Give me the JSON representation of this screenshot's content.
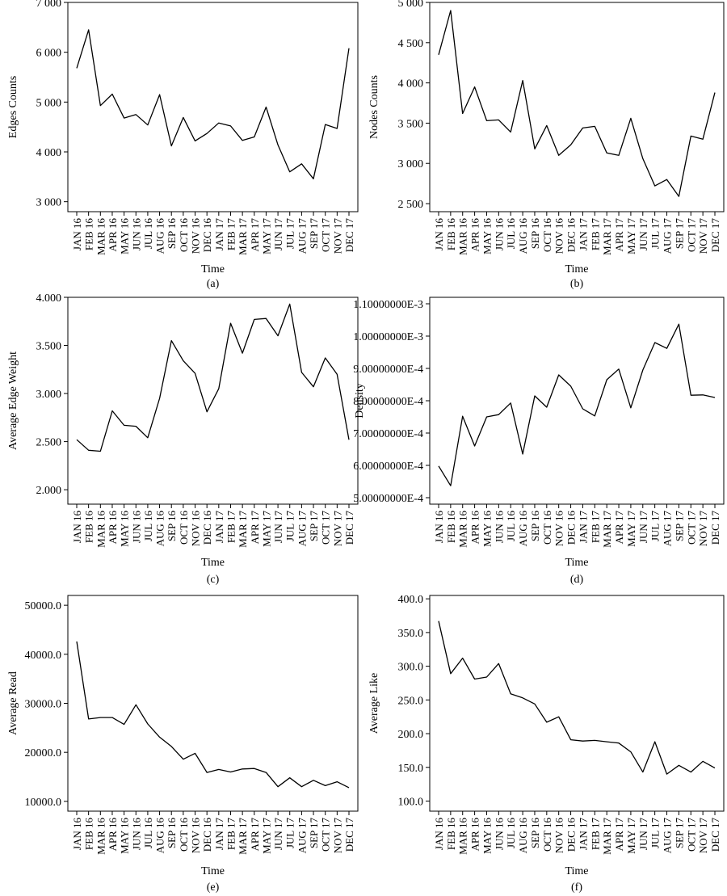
{
  "chart_data": [
    {
      "type": "line",
      "caption": "(a)",
      "xlabel": "Time",
      "ylabel": "Edges Counts",
      "categories": [
        "JAN 16",
        "FEB 16",
        "MAR 16",
        "APR 16",
        "MAY 16",
        "JUN 16",
        "JUL 16",
        "AUG 16",
        "SEP 16",
        "OCT 16",
        "NOV 16",
        "DEC 16",
        "JAN 17",
        "FEB 17",
        "MAR 17",
        "APR 17",
        "MAY 17",
        "JUN 17",
        "JUL 17",
        "AUG 17",
        "SEP 17",
        "OCT 17",
        "NOV 17",
        "DEC 17"
      ],
      "values": [
        5680,
        6450,
        4930,
        5160,
        4680,
        4750,
        4540,
        5150,
        4120,
        4690,
        4220,
        4370,
        4580,
        4520,
        4230,
        4300,
        4900,
        4140,
        3600,
        3760,
        3460,
        4550,
        4470,
        6080
      ],
      "ylim": [
        2800,
        7000
      ],
      "yticks": [
        3000,
        4000,
        5000,
        6000,
        7000
      ],
      "ytick_labels": [
        "3 000",
        "4 000",
        "5 000",
        "6 000",
        "7 000"
      ]
    },
    {
      "type": "line",
      "caption": "(b)",
      "xlabel": "Time",
      "ylabel": "Nodes Counts",
      "categories": [
        "JAN 16",
        "FEB 16",
        "MAR 16",
        "APR 16",
        "MAY 16",
        "JUN 16",
        "JUL 16",
        "AUG 16",
        "SEP 16",
        "OCT 16",
        "NOV 16",
        "DEC 16",
        "JAN 17",
        "FEB 17",
        "MAR 17",
        "APR 17",
        "MAY 17",
        "JUN 17",
        "JUL 17",
        "AUG 17",
        "SEP 17",
        "OCT 17",
        "NOV 17",
        "DEC 17"
      ],
      "values": [
        4350,
        4900,
        3620,
        3950,
        3530,
        3540,
        3390,
        4030,
        3180,
        3470,
        3100,
        3230,
        3440,
        3460,
        3130,
        3100,
        3560,
        3060,
        2720,
        2800,
        2590,
        3340,
        3300,
        3880
      ],
      "ylim": [
        2400,
        5000
      ],
      "yticks": [
        2500,
        3000,
        3500,
        4000,
        4500,
        5000
      ],
      "ytick_labels": [
        "2 500",
        "3 000",
        "3 500",
        "4 000",
        "4 500",
        "5 000"
      ]
    },
    {
      "type": "line",
      "caption": "(c)",
      "xlabel": "Time",
      "ylabel": "Average Edge Weight",
      "categories": [
        "JAN 16",
        "FEB 16",
        "MAR 16",
        "APR 16",
        "MAY 16",
        "JUN 16",
        "JUL 16",
        "AUG 16",
        "SEP 16",
        "OCT 16",
        "NOV 16",
        "DEC 16",
        "JAN 17",
        "FEB 17",
        "MAR 17",
        "APR 17",
        "MAY 17",
        "JUN 17",
        "JUL 17",
        "AUG 17",
        "SEP 17",
        "OCT 17",
        "NOV 17",
        "DEC 17"
      ],
      "values": [
        2.52,
        2.41,
        2.4,
        2.82,
        2.67,
        2.66,
        2.54,
        2.95,
        3.55,
        3.34,
        3.21,
        2.81,
        3.05,
        3.73,
        3.42,
        3.77,
        3.78,
        3.6,
        3.93,
        3.22,
        3.07,
        3.37,
        3.2,
        2.52
      ],
      "ylim": [
        1.85,
        4.0
      ],
      "yticks": [
        2.0,
        2.5,
        3.0,
        3.5,
        4.0
      ],
      "ytick_labels": [
        "2.000",
        "2.500",
        "3.000",
        "3.500",
        "4.000"
      ]
    },
    {
      "type": "line",
      "caption": "(d)",
      "xlabel": "Time",
      "ylabel": "Density",
      "categories": [
        "JAN 16",
        "FEB 16",
        "MAR 16",
        "APR 16",
        "MAY 16",
        "JUN 16",
        "JUL 16",
        "AUG 16",
        "SEP 16",
        "OCT 16",
        "NOV 16",
        "DEC 16",
        "JAN 17",
        "FEB 17",
        "MAR 17",
        "APR 17",
        "MAY 17",
        "JUN 17",
        "JUL 17",
        "AUG 17",
        "SEP 17",
        "OCT 17",
        "NOV 17",
        "DEC 17"
      ],
      "values": [
        0.000598,
        0.000537,
        0.000752,
        0.00066,
        0.00075,
        0.000757,
        0.000793,
        0.000635,
        0.000815,
        0.00078,
        0.00088,
        0.000845,
        0.000775,
        0.000753,
        0.000865,
        0.000898,
        0.000778,
        0.000895,
        0.00098,
        0.000962,
        0.001037,
        0.000817,
        0.000818,
        0.00081
      ],
      "ylim": [
        0.00048,
        0.00112
      ],
      "yticks": [
        0.0005,
        0.0006,
        0.0007,
        0.0008,
        0.0009,
        0.001,
        0.0011
      ],
      "ytick_labels": [
        "5.00000000E-4",
        "6.00000000E-4",
        "7.00000000E-4",
        "8.00000000E-4",
        "9.00000000E-4",
        "1.00000000E-3",
        "1.10000000E-3"
      ]
    },
    {
      "type": "line",
      "caption": "(e)",
      "xlabel": "Time",
      "ylabel": "Average Read",
      "categories": [
        "JAN 16",
        "FEB 16",
        "MAR 16",
        "APR 16",
        "MAY 16",
        "JUN 16",
        "JUL 16",
        "AUG 16",
        "SEP 16",
        "OCT 16",
        "NOV 16",
        "DEC 16",
        "JAN 17",
        "FEB 17",
        "MAR 17",
        "APR 17",
        "MAY 17",
        "JUN 17",
        "JUL 17",
        "AUG 17",
        "SEP 17",
        "OCT 17",
        "NOV 17",
        "DEC 17"
      ],
      "values": [
        42600,
        26800,
        27100,
        27100,
        25700,
        29700,
        25800,
        23100,
        21200,
        18600,
        19800,
        15900,
        16500,
        16000,
        16600,
        16700,
        15900,
        13000,
        14800,
        13000,
        14300,
        13200,
        14000,
        12800
      ],
      "ylim": [
        8000,
        52000
      ],
      "yticks": [
        10000,
        20000,
        30000,
        40000,
        50000
      ],
      "ytick_labels": [
        "10000.0",
        "20000.0",
        "30000.0",
        "40000.0",
        "50000.0"
      ]
    },
    {
      "type": "line",
      "caption": "(f)",
      "xlabel": "Time",
      "ylabel": "Average Like",
      "categories": [
        "JAN 16",
        "FEB 16",
        "MAR 16",
        "APR 16",
        "MAY 16",
        "JUN 16",
        "JUL 16",
        "AUG 16",
        "SEP 16",
        "OCT 16",
        "NOV 16",
        "DEC 16",
        "JAN 17",
        "FEB 17",
        "MAR 17",
        "APR 17",
        "MAY 17",
        "JUN 17",
        "JUL 17",
        "AUG 17",
        "SEP 17",
        "OCT 17",
        "NOV 17",
        "DEC 17"
      ],
      "values": [
        367,
        289,
        312,
        281,
        284,
        304,
        259,
        253,
        244,
        217,
        225,
        191,
        189,
        190,
        188,
        186,
        173,
        143,
        188,
        140,
        153,
        143,
        159,
        149
      ],
      "ylim": [
        85,
        405
      ],
      "yticks": [
        100,
        150,
        200,
        250,
        300,
        350,
        400
      ],
      "ytick_labels": [
        "100.0",
        "150.0",
        "200.0",
        "250.0",
        "300.0",
        "350.0",
        "400.0"
      ]
    }
  ]
}
